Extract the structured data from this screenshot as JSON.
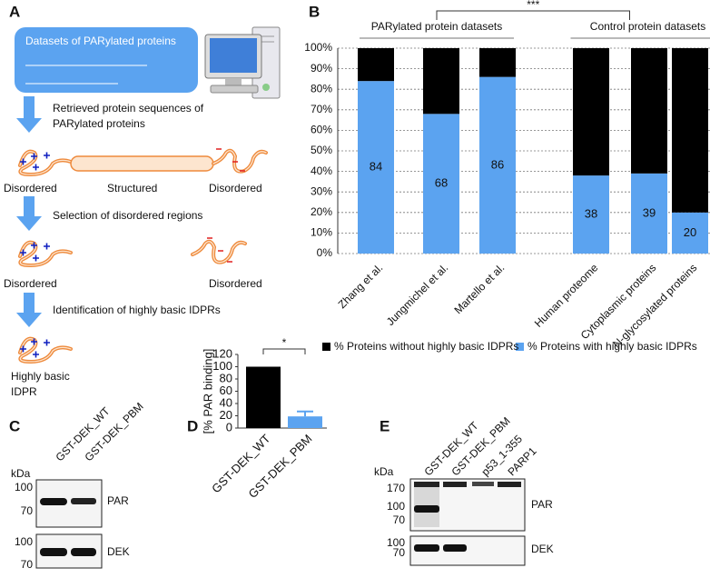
{
  "panels": {
    "a": {
      "letter": "A",
      "box_title": "Datasets of PARylated proteins",
      "step1": [
        "Retrieved protein sequences of",
        "PARylated proteins"
      ],
      "region_labels": [
        "Disordered",
        "Structured",
        "Disordered"
      ],
      "step2": "Selection of disordered regions",
      "region_labels_2": [
        "Disordered",
        "Disordered"
      ],
      "step3": "Identification of highly basic IDPRs",
      "result": [
        "Highly basic",
        "IDPR"
      ]
    },
    "c": {
      "letter": "C",
      "lanes": [
        "GST-DEK_WT",
        "GST-DEK_PBM"
      ],
      "unit": "kDa",
      "blots": [
        {
          "markers": [
            "100",
            "70"
          ],
          "label": "PAR"
        },
        {
          "markers": [
            "100",
            "70"
          ],
          "label": "DEK"
        }
      ]
    },
    "e": {
      "letter": "E",
      "lanes": [
        "GST-DEK_WT",
        "GST-DEK_PBM",
        "p53_1-355",
        "PARP1"
      ],
      "unit": "kDa",
      "blots": [
        {
          "markers": [
            "170",
            "100",
            "70"
          ],
          "label": "PAR"
        },
        {
          "markers": [
            "100",
            "70"
          ],
          "label": "DEK"
        }
      ]
    }
  },
  "chart_data": [
    {
      "type": "stacked_bar",
      "letter": "B",
      "categories": [
        "Zhang et al.",
        "Jungmichel et al.",
        "Martello et al.",
        "Human proteome",
        "Cytoplasmic proteins",
        "N-glycosylated proteins"
      ],
      "series": [
        {
          "name": "% Proteins with highly basic IDPRs",
          "color": "#5ba3f0",
          "values": [
            84,
            68,
            86,
            38,
            39,
            20
          ]
        },
        {
          "name": "% Proteins without highly basic IDPRs",
          "color": "#000000",
          "values": [
            16,
            32,
            14,
            62,
            61,
            80
          ]
        }
      ],
      "ylim": [
        0,
        100
      ],
      "yticks": [
        {
          "value": 0,
          "label": "0%"
        },
        {
          "value": 10,
          "label": "10%"
        },
        {
          "value": 20,
          "label": "20%"
        },
        {
          "value": 30,
          "label": "30%"
        },
        {
          "value": 40,
          "label": "40%"
        },
        {
          "value": 50,
          "label": "50%"
        },
        {
          "value": 60,
          "label": "60%"
        },
        {
          "value": 70,
          "label": "70%"
        },
        {
          "value": 80,
          "label": "80%"
        },
        {
          "value": 90,
          "label": "90%"
        },
        {
          "value": 100,
          "label": "100%"
        }
      ],
      "grid": true,
      "group_labels": [
        "PARylated protein datasets",
        "Control protein datasets"
      ],
      "significance": "***"
    },
    {
      "type": "bar",
      "letter": "D",
      "categories": [
        "GST-DEK_WT",
        "GST-DEK_PBM"
      ],
      "values": [
        100,
        19
      ],
      "errors": [
        null,
        8
      ],
      "colors": [
        "#000000",
        "#5ba3f0"
      ],
      "ylim": [
        0,
        120
      ],
      "yticks": [
        0,
        20,
        40,
        60,
        80,
        100,
        120
      ],
      "ylabel": "[% PAR binding]",
      "significance": "*"
    }
  ]
}
